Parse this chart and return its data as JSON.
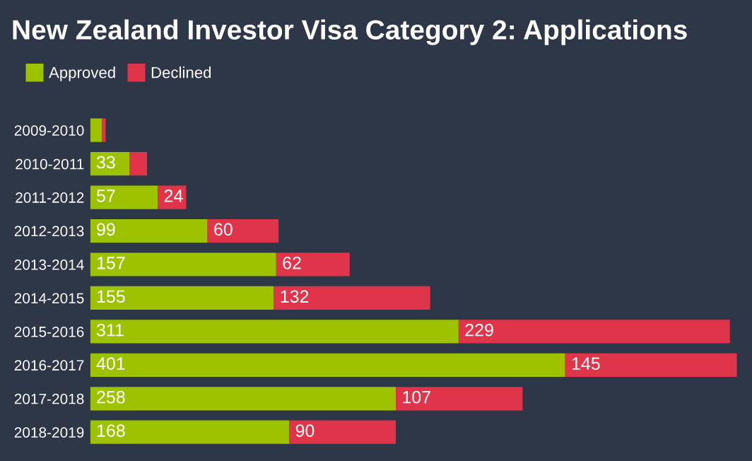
{
  "chart_data": {
    "type": "bar",
    "orientation": "horizontal",
    "stacked": true,
    "title": "New Zealand Investor Visa Category 2: Applications",
    "legend": "top left",
    "categories": [
      "2009-2010",
      "2010-2011",
      "2011-2012",
      "2012-2013",
      "2013-2014",
      "2014-2015",
      "2015-2016",
      "2016-2017",
      "2017-2018",
      "2018-2019"
    ],
    "series": [
      {
        "name": "Approved",
        "color": "#9dc300",
        "values": [
          10,
          33,
          57,
          99,
          157,
          155,
          311,
          401,
          258,
          168
        ],
        "value_labels": [
          null,
          "33",
          "57",
          "99",
          "157",
          "155",
          "311",
          "401",
          "258",
          "168"
        ]
      },
      {
        "name": "Declined",
        "color": "#e0344a",
        "values": [
          3,
          15,
          24,
          60,
          62,
          132,
          229,
          145,
          107,
          90
        ],
        "value_labels": [
          null,
          null,
          "24",
          "60",
          "62",
          "132",
          "229",
          "145",
          "107",
          "90"
        ]
      }
    ]
  }
}
